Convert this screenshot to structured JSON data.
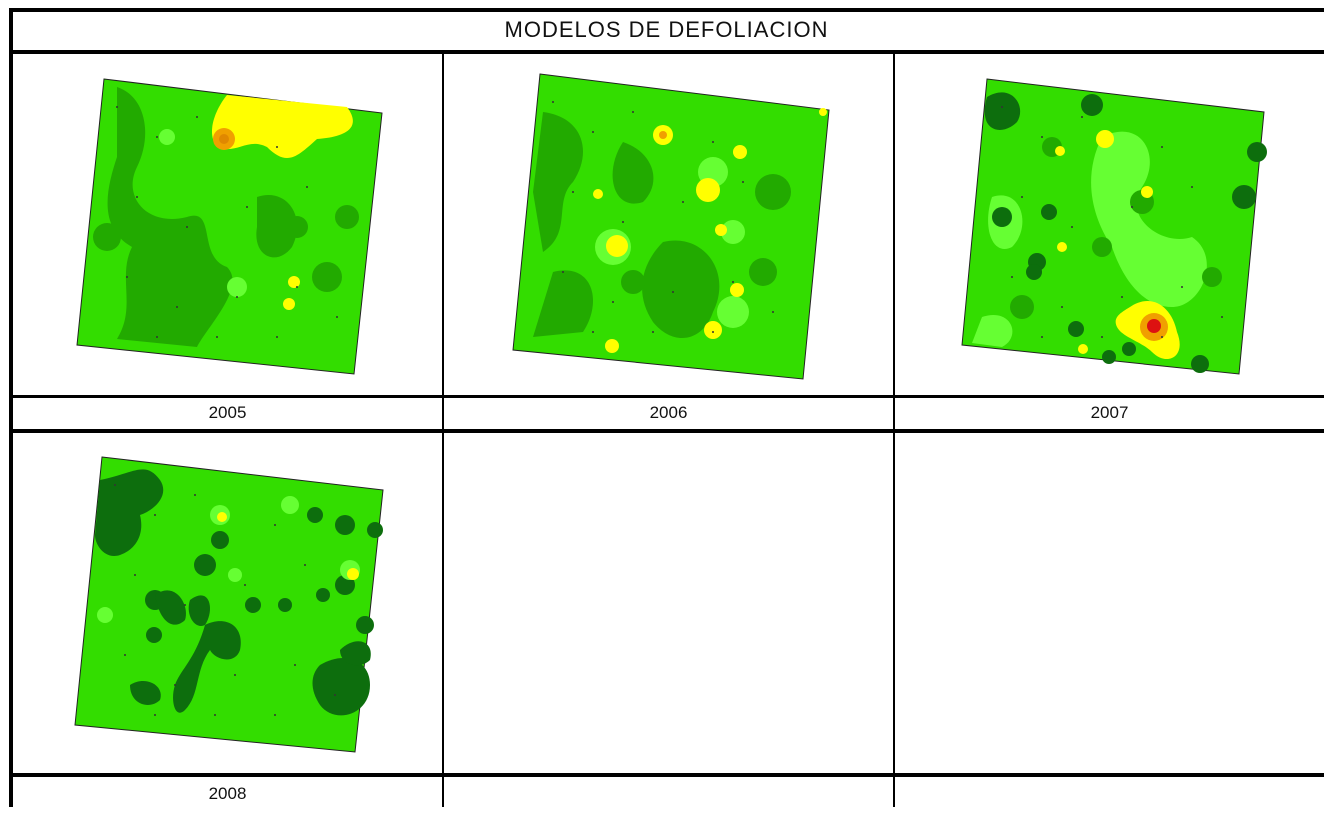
{
  "table": {
    "title": "MODELOS DE DEFOLIACION",
    "years": [
      "2005",
      "2006",
      "2007",
      "2008"
    ]
  },
  "colors": {
    "base_green": "#33dd00",
    "dark_green": "#22aa00",
    "darkest_green": "#0d6e0d",
    "light_green": "#66ff33",
    "yellow": "#ffff00",
    "orange": "#f0a000",
    "red": "#dd1111",
    "frame": "#000000"
  },
  "maps": [
    {
      "year": "2005",
      "hotspots": [
        "yellow",
        "orange",
        "yellow",
        "yellow"
      ]
    },
    {
      "year": "2006",
      "hotspots": [
        "yellow",
        "yellow",
        "yellow",
        "yellow",
        "yellow",
        "yellow",
        "yellow",
        "yellow"
      ]
    },
    {
      "year": "2007",
      "hotspots": [
        "yellow",
        "yellow",
        "yellow",
        "red"
      ]
    },
    {
      "year": "2008",
      "hotspots": [
        "yellow",
        "yellow"
      ]
    }
  ]
}
